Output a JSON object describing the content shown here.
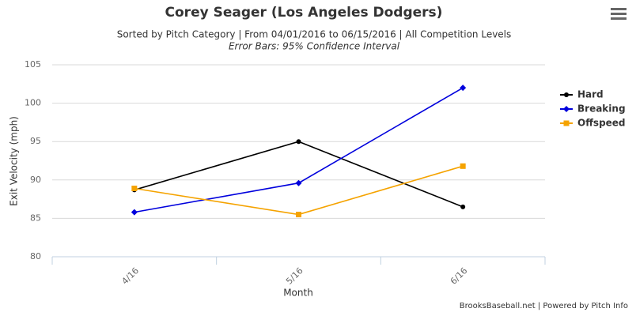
{
  "chart_data": {
    "type": "line",
    "title": "Corey Seager (Los Angeles Dodgers)",
    "subtitle": "Sorted by Pitch Category | From 04/01/2016 to 06/15/2016 | All Competition Levels",
    "note": "Error Bars: 95% Confidence Interval",
    "x_label": "Month",
    "y_label": "Exit Velocity (mph)",
    "credits": "BrooksBaseball.net | Powered by Pitch Info",
    "categories": [
      "4/16",
      "5/16",
      "6/16"
    ],
    "series": [
      {
        "name": "Hard",
        "color": "#000000",
        "marker": "circle",
        "values": [
          88.7,
          95.0,
          86.5
        ]
      },
      {
        "name": "Breaking",
        "color": "#0000dd",
        "marker": "diamond",
        "values": [
          85.8,
          89.6,
          102.0
        ]
      },
      {
        "name": "Offspeed",
        "color": "#f5a300",
        "marker": "square",
        "values": [
          88.9,
          85.5,
          91.8
        ]
      }
    ],
    "ylim": [
      80,
      105
    ],
    "yticks": [
      80,
      85,
      90,
      95,
      100,
      105
    ],
    "grid": true,
    "legend": "right"
  }
}
